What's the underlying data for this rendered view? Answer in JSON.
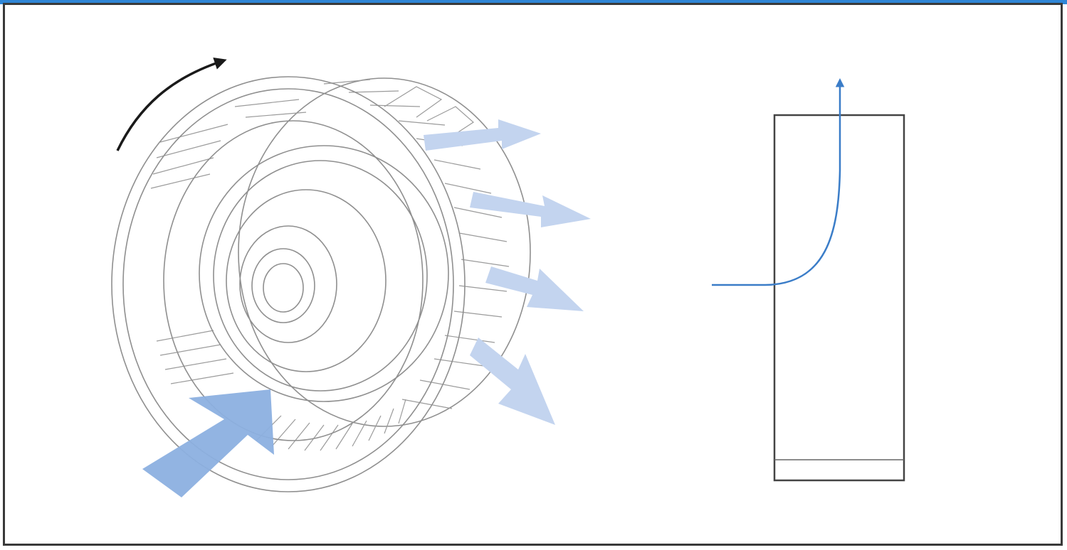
{
  "diagram": {
    "subject": "centrifugal-fan-impeller",
    "colors": {
      "frame": "#3a3a3a",
      "top_bar": "#2f86d6",
      "impeller_lines": "#8f8f8f",
      "inlet_arrow": "#8cb0e0",
      "outlet_arrows": "#c3d4ef",
      "rotation_arrow": "#1a1a1a",
      "flow_path": "#3b7dc8",
      "housing": "#444444"
    },
    "outlet_arrow_count": 4
  }
}
